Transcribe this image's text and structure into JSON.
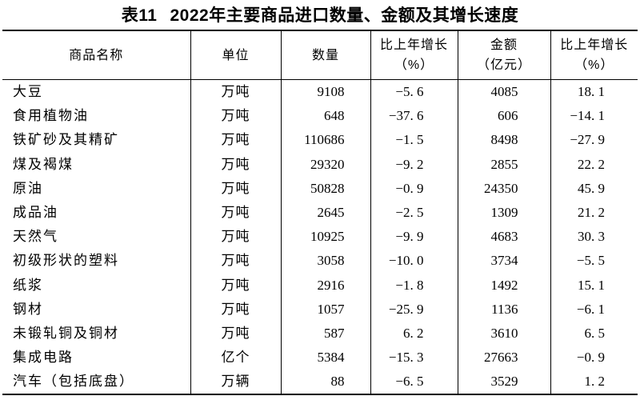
{
  "title": {
    "prefix": "表11",
    "text": "2022年主要商品进口数量、金额及其增长速度"
  },
  "table": {
    "headers": [
      {
        "line1": "商品名称",
        "line2": ""
      },
      {
        "line1": "单位",
        "line2": ""
      },
      {
        "line1": "数量",
        "line2": ""
      },
      {
        "line1": "比上年增长",
        "line2": "（%）"
      },
      {
        "line1": "金额",
        "line2": "（亿元）"
      },
      {
        "line1": "比上年增长",
        "line2": "（%）"
      }
    ],
    "rows": [
      [
        "大豆",
        "万吨",
        "9108",
        "−5. 6",
        "4085",
        "18. 1"
      ],
      [
        "食用植物油",
        "万吨",
        "648",
        "−37. 6",
        "606",
        "−14. 1"
      ],
      [
        "铁矿砂及其精矿",
        "万吨",
        "110686",
        "−1. 5",
        "8498",
        "−27. 9"
      ],
      [
        "煤及褐煤",
        "万吨",
        "29320",
        "−9. 2",
        "2855",
        "22. 2"
      ],
      [
        "原油",
        "万吨",
        "50828",
        "−0. 9",
        "24350",
        "45. 9"
      ],
      [
        "成品油",
        "万吨",
        "2645",
        "−2. 5",
        "1309",
        "21. 2"
      ],
      [
        "天然气",
        "万吨",
        "10925",
        "−9. 9",
        "4683",
        "30. 3"
      ],
      [
        "初级形状的塑料",
        "万吨",
        "3058",
        "−10. 0",
        "3734",
        "−5. 5"
      ],
      [
        "纸浆",
        "万吨",
        "2916",
        "−1. 8",
        "1492",
        "15. 1"
      ],
      [
        "钢材",
        "万吨",
        "1057",
        "−25. 9",
        "1136",
        "−6. 1"
      ],
      [
        "未锻轧铜及铜材",
        "万吨",
        "587",
        "6. 2",
        "3610",
        "6. 5"
      ],
      [
        "集成电路",
        "亿个",
        "5384",
        "−15. 3",
        "27663",
        "−0. 9"
      ],
      [
        "汽车（包括底盘）",
        "万辆",
        "88",
        "−6. 5",
        "3529",
        "1. 2"
      ]
    ]
  }
}
